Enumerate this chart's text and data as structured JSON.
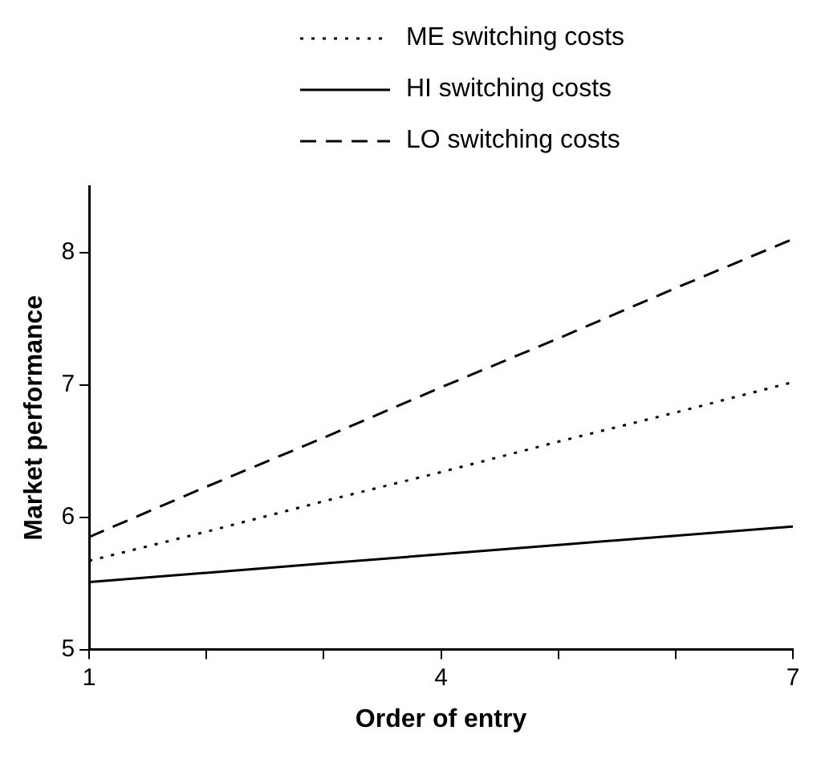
{
  "chart_data": {
    "type": "line",
    "xlabel": "Order of entry",
    "ylabel": "Market performance",
    "x": [
      1,
      2,
      3,
      4,
      5,
      6,
      7
    ],
    "series": [
      {
        "name": "ME switching costs",
        "color": "#000000",
        "line_style": "dotted",
        "values": [
          5.67,
          5.89,
          6.12,
          6.34,
          6.57,
          6.79,
          7.02
        ]
      },
      {
        "name": "HI switching costs",
        "color": "#000000",
        "line_style": "solid",
        "values": [
          5.51,
          5.58,
          5.65,
          5.72,
          5.79,
          5.86,
          5.93
        ]
      },
      {
        "name": "LO switching costs",
        "color": "#000000",
        "line_style": "dashed",
        "values": [
          5.85,
          6.23,
          6.6,
          6.98,
          7.35,
          7.73,
          8.1
        ]
      }
    ],
    "xlim": [
      1,
      7
    ],
    "xticks": [
      1,
      {
        "value": 2,
        "label": null
      },
      {
        "value": 3,
        "label": null
      },
      4,
      {
        "value": 5,
        "label": null
      },
      {
        "value": 6,
        "label": null
      },
      7
    ],
    "ylim": [
      5,
      8.5
    ],
    "yticks": [
      5,
      6,
      7,
      8
    ],
    "grid": false,
    "legend": "top",
    "marker": "none"
  }
}
